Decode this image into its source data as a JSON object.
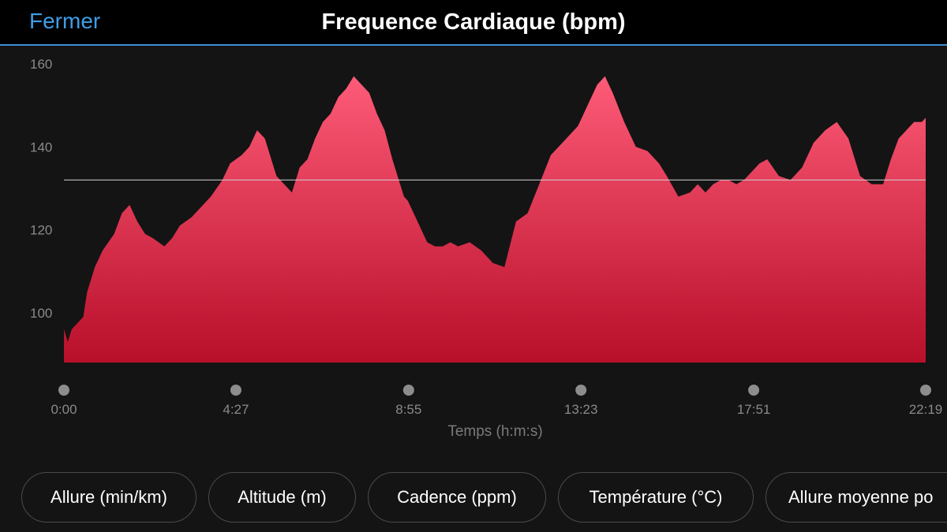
{
  "header": {
    "close_label": "Fermer",
    "title": "Frequence Cardiaque (bpm)",
    "accent_color": "#3e9ee8"
  },
  "chart_data": {
    "type": "area",
    "title": "Frequence Cardiaque (bpm)",
    "xlabel": "Temps (h:m:s)",
    "ylabel": "",
    "xlim": [
      0,
      22.3
    ],
    "ylim": [
      88,
      164
    ],
    "y_ticks": [
      100,
      120,
      140,
      160
    ],
    "x_ticks": [
      {
        "value": 0,
        "label": "0:00"
      },
      {
        "value": 4.45,
        "label": "4:27"
      },
      {
        "value": 8.92,
        "label": "8:55"
      },
      {
        "value": 13.38,
        "label": "13:23"
      },
      {
        "value": 17.85,
        "label": "17:51"
      },
      {
        "value": 22.3,
        "label": "22:19"
      }
    ],
    "average_line": 132,
    "fill_top_color": "#fd5b78",
    "fill_bottom_color": "#b80f2a",
    "series": [
      {
        "x": [
          0,
          0.1,
          0.2,
          0.5,
          0.6,
          0.8,
          1.0,
          1.3,
          1.5,
          1.7,
          1.9,
          2.1,
          2.3,
          2.6,
          2.8,
          3.0,
          3.3,
          3.6,
          3.8,
          4.1,
          4.3,
          4.6,
          4.8,
          5.0,
          5.2,
          5.5,
          5.7,
          5.9,
          6.1,
          6.3,
          6.5,
          6.7,
          6.9,
          7.1,
          7.3,
          7.5,
          7.7,
          7.9,
          8.1,
          8.3,
          8.5,
          8.7,
          8.8,
          8.9,
          9.0,
          9.2,
          9.4,
          9.6,
          9.8,
          10.0,
          10.2,
          10.5,
          10.8,
          11.1,
          11.4,
          11.7,
          12.0,
          12.3,
          12.6,
          12.9,
          13.1,
          13.3,
          13.4,
          13.6,
          13.8,
          14.0,
          14.2,
          14.5,
          14.8,
          15.1,
          15.4,
          15.6,
          15.9,
          16.2,
          16.4,
          16.6,
          16.8,
          17.0,
          17.2,
          17.4,
          17.6,
          17.8,
          18.0,
          18.2,
          18.5,
          18.8,
          19.1,
          19.4,
          19.7,
          20.0,
          20.3,
          20.6,
          20.9,
          21.2,
          21.4,
          21.6,
          21.8,
          22.0,
          22.2,
          22.3
        ],
        "y": [
          96,
          93,
          96,
          99,
          105,
          111,
          115,
          119,
          124,
          126,
          122,
          119,
          118,
          116,
          118,
          121,
          123,
          126,
          128,
          132,
          136,
          138,
          140,
          144,
          142,
          133,
          131,
          129,
          135,
          137,
          142,
          146,
          148,
          152,
          154,
          157,
          155,
          153,
          148,
          144,
          137,
          131,
          128,
          127,
          125,
          121,
          117,
          116,
          116,
          117,
          116,
          117,
          115,
          112,
          111,
          122,
          124,
          131,
          138,
          141,
          143,
          145,
          147,
          151,
          155,
          157,
          153,
          146,
          140,
          139,
          136,
          133,
          128,
          129,
          131,
          129,
          131,
          132,
          132,
          131,
          132,
          134,
          136,
          137,
          133,
          132,
          135,
          141,
          144,
          146,
          142,
          133,
          131,
          131,
          137,
          142,
          144,
          146,
          146,
          147
        ]
      }
    ]
  },
  "pills": [
    {
      "label": "Allure (min/km)"
    },
    {
      "label": "Altitude (m)"
    },
    {
      "label": "Cadence (ppm)"
    },
    {
      "label": "Température (°C)"
    },
    {
      "label": "Allure moyenne po"
    }
  ]
}
